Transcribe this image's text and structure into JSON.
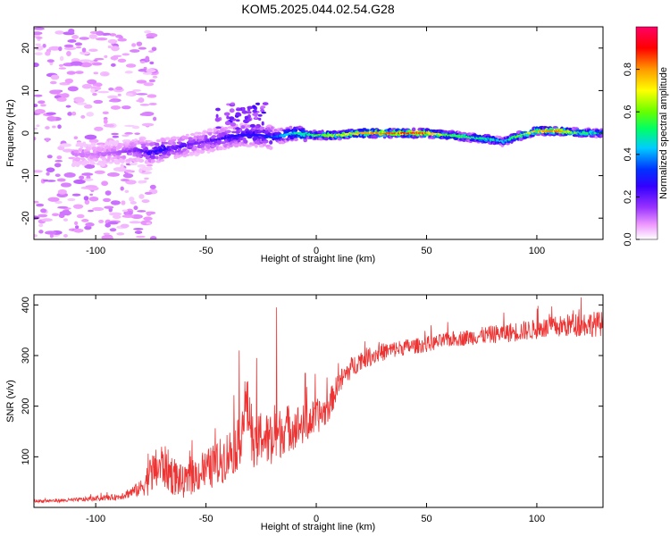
{
  "title": "KOM5.2025.044.02.54.G28",
  "chart_data": [
    {
      "type": "heatmap",
      "xlabel": "Height of straight line (km)",
      "ylabel": "Frequency (Hz)",
      "xlim": [
        -128,
        130
      ],
      "ylim": [
        -25,
        25
      ],
      "xticks": [
        -100,
        -50,
        0,
        50,
        100
      ],
      "yticks": [
        -20,
        -10,
        0,
        10,
        20
      ],
      "colorbar": {
        "label": "Normalized spectral amplitude",
        "ticks": [
          0.0,
          0.2,
          0.4,
          0.6,
          0.8
        ],
        "range": [
          0,
          1
        ],
        "colormap": [
          "#ffffff",
          "#ee99ff",
          "#9933ff",
          "#3300ff",
          "#0033ff",
          "#00ccff",
          "#00ff66",
          "#66ff00",
          "#ffff00",
          "#ff9900",
          "#ff0000",
          "#ff0066"
        ]
      },
      "ridge": {
        "x": [
          -100,
          -90,
          -80,
          -75,
          -70,
          -65,
          -60,
          -55,
          -50,
          -45,
          -40,
          -35,
          -30,
          -25,
          -20,
          -15,
          -10,
          0,
          10,
          20,
          30,
          40,
          50,
          60,
          70,
          80,
          85,
          90,
          100,
          110,
          120,
          130
        ],
        "frequency": [
          -5,
          -4.5,
          -4,
          -4.5,
          -4,
          -3.5,
          -3,
          -2.5,
          -2,
          -1.5,
          -1,
          -0.5,
          -0.5,
          -0.5,
          -1,
          -0.5,
          0,
          -0.5,
          -0.5,
          0,
          0,
          0,
          0,
          -0.5,
          -1,
          -1.5,
          -2,
          -1,
          0.5,
          0.5,
          0,
          0
        ],
        "amplitude": [
          0.12,
          0.15,
          0.22,
          0.28,
          0.3,
          0.22,
          0.25,
          0.2,
          0.22,
          0.25,
          0.28,
          0.3,
          0.3,
          0.3,
          0.35,
          0.45,
          0.5,
          0.6,
          0.7,
          0.8,
          0.85,
          0.9,
          0.85,
          0.6,
          0.55,
          0.55,
          0.45,
          0.6,
          0.8,
          0.85,
          0.6,
          0.5
        ]
      }
    },
    {
      "type": "line",
      "xlabel": "Height of straight line (km)",
      "ylabel": "SNR (v/v)",
      "xlim": [
        -128,
        130
      ],
      "ylim": [
        0,
        420
      ],
      "xticks": [
        -100,
        -50,
        0,
        50,
        100
      ],
      "yticks": [
        100,
        200,
        300,
        400
      ],
      "series": [
        {
          "color": "#ee3333",
          "trend_x": [
            -128,
            -110,
            -90,
            -80,
            -75,
            -70,
            -65,
            -60,
            -55,
            -50,
            -45,
            -40,
            -35,
            -32,
            -30,
            -28,
            -25,
            -20,
            -15,
            -10,
            -5,
            0,
            5,
            10,
            15,
            20,
            30,
            40,
            50,
            60,
            70,
            80,
            90,
            100,
            110,
            120,
            130
          ],
          "trend_y": [
            12,
            14,
            20,
            35,
            60,
            80,
            60,
            45,
            60,
            70,
            80,
            100,
            120,
            200,
            170,
            100,
            140,
            120,
            150,
            155,
            160,
            175,
            190,
            240,
            270,
            290,
            305,
            315,
            320,
            330,
            335,
            340,
            345,
            350,
            355,
            360,
            360
          ],
          "noise": [
            3,
            4,
            6,
            15,
            40,
            45,
            40,
            30,
            35,
            40,
            45,
            50,
            50,
            60,
            60,
            50,
            55,
            55,
            50,
            45,
            40,
            35,
            30,
            25,
            22,
            20,
            18,
            16,
            15,
            15,
            16,
            18,
            20,
            20,
            22,
            25,
            25
          ],
          "peaks": [
            {
              "x": -35,
              "y": 310
            },
            {
              "x": -27,
              "y": 295
            },
            {
              "x": -18,
              "y": 395
            },
            {
              "x": -5,
              "y": 265
            },
            {
              "x": 10,
              "y": 285
            },
            {
              "x": 85,
              "y": 385
            },
            {
              "x": 120,
              "y": 415
            }
          ]
        }
      ]
    }
  ]
}
